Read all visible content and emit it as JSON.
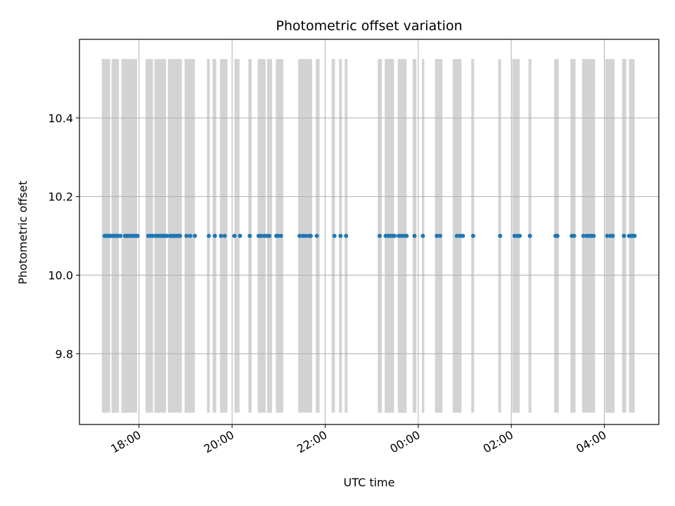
{
  "chart_data": {
    "type": "scatter",
    "title": "Photometric offset variation",
    "xlabel": "UTC time",
    "ylabel": "Photometric offset",
    "x_unit": "UTC hours (24 + h past midnight)",
    "xlim": [
      16.72,
      29.17
    ],
    "ylim": [
      9.62,
      10.6
    ],
    "x_ticks": [
      {
        "value": 18,
        "label": "18:00"
      },
      {
        "value": 20,
        "label": "20:00"
      },
      {
        "value": 22,
        "label": "22:00"
      },
      {
        "value": 24,
        "label": "00:00"
      },
      {
        "value": 26,
        "label": "02:00"
      },
      {
        "value": 28,
        "label": "04:00"
      }
    ],
    "y_ticks": [
      {
        "value": 9.8,
        "label": "9.8"
      },
      {
        "value": 10.0,
        "label": "10.0"
      },
      {
        "value": 10.2,
        "label": "10.2"
      },
      {
        "value": 10.4,
        "label": "10.4"
      }
    ],
    "grid": true,
    "series": [
      {
        "color": "#1f77b4",
        "y_value": 10.1,
        "x": [
          17.26,
          17.3,
          17.33,
          17.37,
          17.41,
          17.45,
          17.48,
          17.52,
          17.55,
          17.6,
          17.7,
          17.74,
          17.77,
          17.82,
          17.85,
          17.9,
          17.94,
          17.97,
          18.2,
          18.25,
          18.3,
          18.36,
          18.4,
          18.45,
          18.48,
          18.52,
          18.56,
          18.6,
          18.67,
          18.7,
          18.74,
          18.77,
          18.81,
          18.85,
          18.88,
          19.02,
          19.1,
          19.2,
          19.5,
          19.63,
          19.76,
          19.84,
          20.05,
          20.17,
          20.38,
          20.57,
          20.62,
          20.69,
          20.75,
          20.8,
          20.95,
          20.99,
          21.05,
          21.45,
          21.52,
          21.58,
          21.65,
          21.69,
          21.82,
          22.2,
          22.33,
          22.45,
          23.17,
          23.3,
          23.35,
          23.4,
          23.45,
          23.49,
          23.58,
          23.64,
          23.7,
          23.75,
          23.92,
          24.1,
          24.4,
          24.47,
          24.83,
          24.9,
          24.96,
          25.18,
          25.76,
          26.07,
          26.13,
          26.18,
          26.4,
          26.95,
          26.99,
          27.3,
          27.35,
          27.55,
          27.62,
          27.67,
          27.72,
          27.77,
          28.06,
          28.13,
          28.18,
          28.42,
          28.53,
          28.57,
          28.61,
          28.65
        ]
      }
    ],
    "shaded_bands": {
      "color": "#d3d3d3",
      "y_range": [
        9.65,
        10.55
      ],
      "x_ranges": [
        [
          17.2,
          17.38
        ],
        [
          17.41,
          17.57
        ],
        [
          17.62,
          17.96
        ],
        [
          18.14,
          18.3
        ],
        [
          18.33,
          18.58
        ],
        [
          18.62,
          18.92
        ],
        [
          18.98,
          19.2
        ],
        [
          19.46,
          19.52
        ],
        [
          19.58,
          19.66
        ],
        [
          19.74,
          19.9
        ],
        [
          20.05,
          20.16
        ],
        [
          20.35,
          20.42
        ],
        [
          20.55,
          20.72
        ],
        [
          20.75,
          20.86
        ],
        [
          20.94,
          21.1
        ],
        [
          21.42,
          21.72
        ],
        [
          21.8,
          21.88
        ],
        [
          22.14,
          22.21
        ],
        [
          22.3,
          22.36
        ],
        [
          22.42,
          22.48
        ],
        [
          23.13,
          23.22
        ],
        [
          23.28,
          23.48
        ],
        [
          23.56,
          23.75
        ],
        [
          23.88,
          23.96
        ],
        [
          24.08,
          24.13
        ],
        [
          24.36,
          24.52
        ],
        [
          24.74,
          24.93
        ],
        [
          25.14,
          25.2
        ],
        [
          25.72,
          25.78
        ],
        [
          26.02,
          26.18
        ],
        [
          26.37,
          26.43
        ],
        [
          26.92,
          27.02
        ],
        [
          27.27,
          27.38
        ],
        [
          27.52,
          27.8
        ],
        [
          28.02,
          28.22
        ],
        [
          28.38,
          28.47
        ],
        [
          28.53,
          28.65
        ]
      ]
    }
  }
}
